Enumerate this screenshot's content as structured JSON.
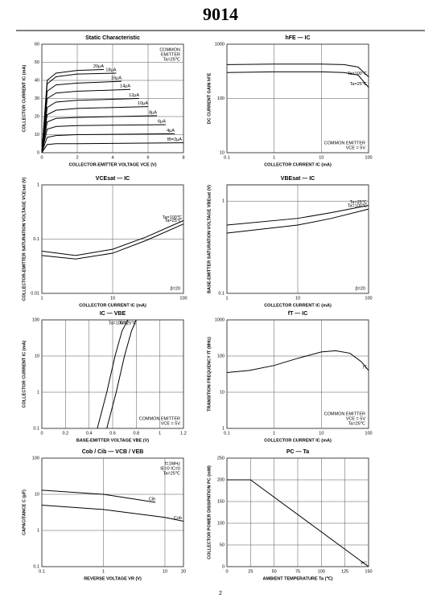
{
  "header": {
    "title": "9014"
  },
  "footer": {
    "page": "2"
  },
  "chart_data": [
    {
      "type": "line",
      "title": "Static Characteristic",
      "xlabel": "COLLECTOR-EMITTER VOLTAGE  VCE  (V)",
      "ylabel": "COLLECTOR CURRENT  IC  (mA)",
      "xlim": [
        0,
        8
      ],
      "ylim": [
        0,
        60
      ],
      "xticks": [
        0,
        2,
        4,
        6,
        8
      ],
      "yticks": [
        0,
        10,
        20,
        30,
        40,
        50,
        60
      ],
      "xlog": false,
      "ylog": false,
      "grid": true,
      "annotations": [
        "COMMON",
        "EMITTER",
        "Ta=25℃"
      ],
      "annotation_corner": "top-right",
      "series": [
        {
          "name": "20μA",
          "color": "#000000",
          "x": [
            0,
            0.3,
            0.8,
            2,
            3.5
          ],
          "values": [
            0,
            40,
            44,
            45.5,
            46
          ]
        },
        {
          "name": "18μA",
          "color": "#000000",
          "x": [
            0,
            0.3,
            0.8,
            2,
            4.2
          ],
          "values": [
            0,
            38,
            42,
            43.5,
            44
          ]
        },
        {
          "name": "16μA",
          "color": "#000000",
          "x": [
            0,
            0.3,
            0.8,
            2,
            4.5
          ],
          "values": [
            0,
            34,
            37.5,
            38.5,
            39.5
          ]
        },
        {
          "name": "14μA",
          "color": "#000000",
          "x": [
            0,
            0.3,
            0.8,
            2,
            5
          ],
          "values": [
            0,
            30,
            33,
            34,
            35
          ]
        },
        {
          "name": "12μA",
          "color": "#000000",
          "x": [
            0,
            0.3,
            0.8,
            2,
            5.5
          ],
          "values": [
            0,
            25,
            28,
            29,
            30
          ]
        },
        {
          "name": "10μA",
          "color": "#000000",
          "x": [
            0,
            0.3,
            0.8,
            2,
            6
          ],
          "values": [
            0,
            21,
            23.5,
            24.5,
            25.5
          ]
        },
        {
          "name": "8μA",
          "color": "#000000",
          "x": [
            0,
            0.3,
            0.8,
            2,
            6.5
          ],
          "values": [
            0,
            17,
            19,
            19.5,
            20.5
          ]
        },
        {
          "name": "6μA",
          "color": "#000000",
          "x": [
            0,
            0.3,
            0.8,
            2,
            7
          ],
          "values": [
            0,
            13,
            14.5,
            15,
            15.5
          ]
        },
        {
          "name": "4μA",
          "color": "#000000",
          "x": [
            0,
            0.3,
            0.8,
            2,
            7.5
          ],
          "values": [
            0,
            8.5,
            9.5,
            10,
            10.5
          ]
        },
        {
          "name": "IB=2μA",
          "color": "#000000",
          "x": [
            0,
            0.3,
            0.8,
            2,
            8
          ],
          "values": [
            0,
            4.5,
            5,
            5,
            5.5
          ]
        }
      ]
    },
    {
      "type": "line",
      "title": "hFE — IC",
      "xlabel": "COLLECTOR CURRENT  IC  (mA)",
      "ylabel": "DC CURRENT GAIN  hFE",
      "xlim": [
        0.1,
        100
      ],
      "ylim": [
        10,
        1000
      ],
      "xticks": [
        0.1,
        1,
        10,
        100
      ],
      "yticks": [
        10,
        100,
        1000
      ],
      "xlog": true,
      "ylog": true,
      "grid": true,
      "annotations": [
        "COMMON EMITTER",
        "VCE = 5V"
      ],
      "annotation_corner": "bottom-right",
      "series": [
        {
          "name": "Ta=100℃",
          "color": "#000000",
          "x": [
            0.1,
            1,
            10,
            30,
            60,
            100
          ],
          "values": [
            420,
            430,
            430,
            420,
            380,
            250
          ]
        },
        {
          "name": "Ta=25℃",
          "color": "#000000",
          "x": [
            0.1,
            1,
            10,
            30,
            60,
            100
          ],
          "values": [
            300,
            310,
            310,
            300,
            270,
            160
          ]
        }
      ]
    },
    {
      "type": "line",
      "title": "VCEsat — IC",
      "xlabel": "COLLECTOR CURRENT  IC  (mA)",
      "ylabel": "COLLECTOR-EMITTER SATURATION VOLTAGE  VCEsat  (V)",
      "xlim": [
        1,
        100
      ],
      "ylim": [
        0.01,
        1
      ],
      "xticks": [
        1,
        10,
        100
      ],
      "yticks": [
        0.01,
        0.1,
        1
      ],
      "xlog": true,
      "ylog": true,
      "grid": true,
      "annotations": [
        "β=20"
      ],
      "annotation_corner": "bottom-right",
      "series": [
        {
          "name": "Ta=100℃",
          "color": "#000000",
          "x": [
            1,
            3,
            10,
            30,
            100
          ],
          "values": [
            0.06,
            0.05,
            0.065,
            0.11,
            0.22
          ]
        },
        {
          "name": "Ta=25℃",
          "color": "#000000",
          "x": [
            1,
            3,
            10,
            30,
            100
          ],
          "values": [
            0.05,
            0.043,
            0.055,
            0.095,
            0.19
          ]
        }
      ]
    },
    {
      "type": "line",
      "title": "VBEsat — IC",
      "xlabel": "COLLECTOR CURRENT  IC  (mA)",
      "ylabel": "BASE-EMITTER SATURATION VOLTAGE  VBEsat  (V)",
      "xlim": [
        1,
        100
      ],
      "ylim": [
        0.1,
        1.5
      ],
      "xticks": [
        1,
        10,
        100
      ],
      "yticks": [
        0.1,
        1
      ],
      "xlog": true,
      "ylog": true,
      "grid": true,
      "annotations": [
        "β=20"
      ],
      "annotation_corner": "bottom-right",
      "series": [
        {
          "name": "Ta=25℃",
          "color": "#000000",
          "x": [
            1,
            10,
            30,
            100
          ],
          "values": [
            0.55,
            0.65,
            0.75,
            0.9
          ]
        },
        {
          "name": "Ta=100℃",
          "color": "#000000",
          "x": [
            1,
            10,
            30,
            100
          ],
          "values": [
            0.45,
            0.55,
            0.65,
            0.82
          ]
        }
      ]
    },
    {
      "type": "line",
      "title": "IC — VBE",
      "xlabel": "BASE-EMITTER VOLTAGE  VBE  (V)",
      "ylabel": "COLLECTOR CURRENT  IC  (mA)",
      "xlim": [
        0,
        1.2
      ],
      "ylim": [
        0.1,
        100
      ],
      "xticks": [
        0,
        0.2,
        0.4,
        0.6,
        0.8,
        1,
        1.2
      ],
      "yticks": [
        0.1,
        1,
        10,
        100
      ],
      "xlog": false,
      "ylog": true,
      "grid": true,
      "annotations": [
        "COMMON EMITTER",
        "VCE = 5V"
      ],
      "annotation_corner": "bottom-right",
      "series": [
        {
          "name": "Ta=100℃",
          "color": "#000000",
          "x": [
            0.47,
            0.55,
            0.62,
            0.68,
            0.73
          ],
          "values": [
            0.1,
            1,
            10,
            50,
            100
          ]
        },
        {
          "name": "Ta=25℃",
          "color": "#000000",
          "x": [
            0.55,
            0.63,
            0.7,
            0.76,
            0.8
          ],
          "values": [
            0.1,
            1,
            10,
            50,
            100
          ]
        }
      ]
    },
    {
      "type": "line",
      "title": "fT — IC",
      "xlabel": "COLLECTOR CURRENT  IC  (mA)",
      "ylabel": "TRANSITION FREQUENCY  fT  (MHz)",
      "xlim": [
        0.1,
        100
      ],
      "ylim": [
        1,
        1000
      ],
      "xticks": [
        0.1,
        1,
        10,
        100
      ],
      "yticks": [
        1,
        10,
        100,
        1000
      ],
      "xlog": true,
      "ylog": true,
      "grid": true,
      "annotations": [
        "COMMON EMITTER",
        "VCE = 5V",
        "Ta=25℃"
      ],
      "annotation_corner": "bottom-right",
      "series": [
        {
          "name": "fT",
          "color": "#000000",
          "x": [
            0.1,
            0.3,
            1,
            3,
            10,
            20,
            40,
            70,
            100
          ],
          "values": [
            35,
            40,
            55,
            85,
            130,
            140,
            120,
            70,
            40
          ]
        }
      ]
    },
    {
      "type": "line",
      "title": "Cob / Cib — VCB / VEB",
      "xlabel": "REVERSE VOLTAGE  VR  (V)",
      "ylabel": "CAPACITANCE  C  (pF)",
      "xlim": [
        0.1,
        20
      ],
      "ylim": [
        0.1,
        100
      ],
      "xticks": [
        0.1,
        1,
        10,
        20
      ],
      "yticks": [
        0.1,
        1,
        10,
        100
      ],
      "xlog": true,
      "ylog": true,
      "grid": true,
      "annotations": [
        "f=1MHz",
        "IE=0 IC=0",
        "Ta=25℃"
      ],
      "annotation_corner": "top-right",
      "series": [
        {
          "name": "Cib",
          "color": "#000000",
          "x": [
            0.1,
            1,
            3,
            7
          ],
          "values": [
            13,
            10,
            7.5,
            6
          ]
        },
        {
          "name": "Cob",
          "color": "#000000",
          "x": [
            0.1,
            1,
            10,
            20
          ],
          "values": [
            5,
            3.8,
            2.3,
            1.8
          ]
        }
      ]
    },
    {
      "type": "line",
      "title": "PC — Ta",
      "xlabel": "AMBIENT TEMPERATURE  Ta  (℃)",
      "ylabel": "COLLECTOR POWER DISSIPATION  PC  (mW)",
      "xlim": [
        0,
        150
      ],
      "ylim": [
        0,
        250
      ],
      "xticks": [
        0,
        25,
        50,
        75,
        100,
        125,
        150
      ],
      "yticks": [
        0,
        50,
        100,
        150,
        200,
        250
      ],
      "xlog": false,
      "ylog": false,
      "grid": true,
      "annotations": [],
      "annotation_corner": "top-right",
      "series": [
        {
          "name": "PC",
          "color": "#000000",
          "x": [
            0,
            25,
            150
          ],
          "values": [
            200,
            200,
            0
          ]
        }
      ]
    }
  ]
}
